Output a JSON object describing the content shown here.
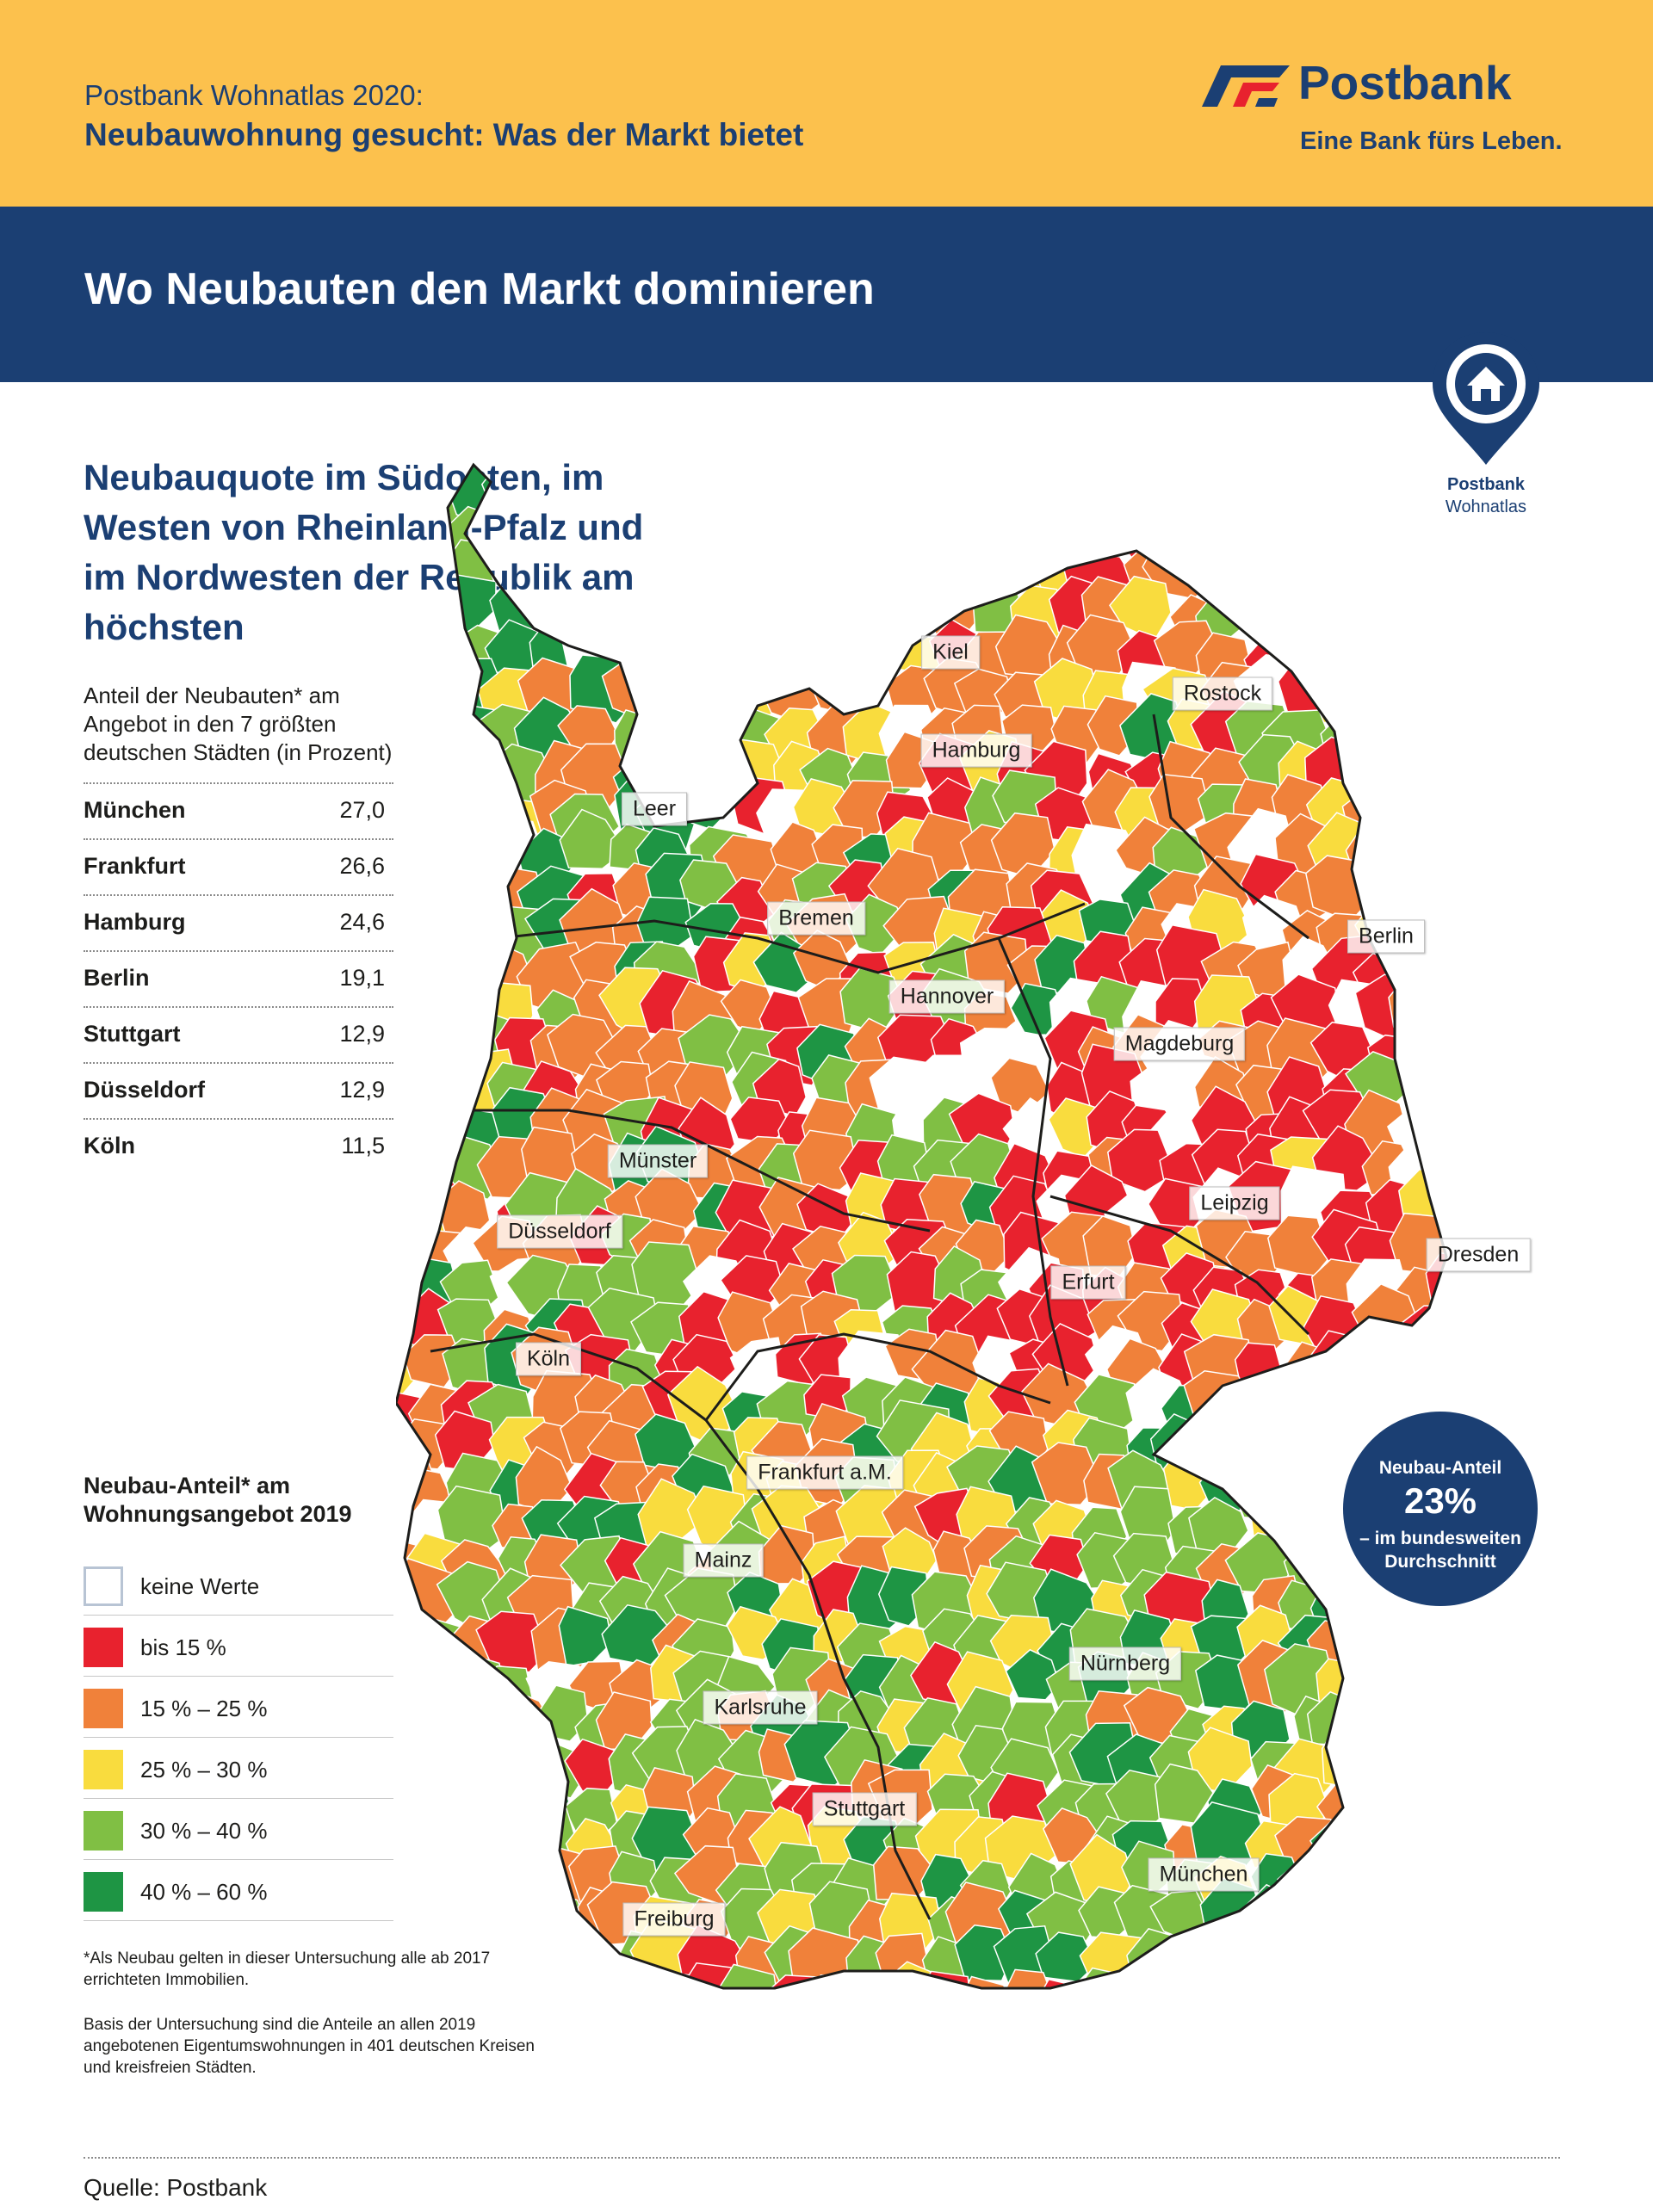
{
  "header": {
    "supertitle": "Postbank Wohnatlas 2020:",
    "subtitle": "Neubauwohnung gesucht: Was der Markt bietet"
  },
  "brand": {
    "name": "Postbank",
    "slogan": "Eine Bank fürs Leben."
  },
  "banner": {
    "title": "Wo Neubauten den Markt dominieren"
  },
  "wohnatlas_pin": {
    "line1": "Postbank",
    "line2": "Wohnatlas",
    "icon": "house-pin-icon"
  },
  "headline": "Neubauquote im Südosten, im Westen von Rheinland-Pfalz und im Nordwesten der Republik am höchsten",
  "table": {
    "intro": "Anteil der Neubauten* am Angebot in den 7 größten deutschen Städten (in Prozent)",
    "rows": [
      {
        "city": "München",
        "value": "27,0"
      },
      {
        "city": "Frankfurt",
        "value": "26,6"
      },
      {
        "city": "Hamburg",
        "value": "24,6"
      },
      {
        "city": "Berlin",
        "value": "19,1"
      },
      {
        "city": "Stuttgart",
        "value": "12,9"
      },
      {
        "city": "Düsseldorf",
        "value": "12,9"
      },
      {
        "city": "Köln",
        "value": "11,5"
      }
    ]
  },
  "legend": {
    "title": "Neubau-Anteil* am Wohnungsangebot 2019",
    "items": [
      {
        "label": "keine Werte",
        "color": "#ffffff"
      },
      {
        "label": "bis 15 %",
        "color": "#e8222e"
      },
      {
        "label": "15 % – 25 %",
        "color": "#f0813a"
      },
      {
        "label": "25 % – 30 %",
        "color": "#f9dc3e"
      },
      {
        "label": "30 % – 40 %",
        "color": "#80bf44"
      },
      {
        "label": "40 % – 60 %",
        "color": "#1e9544"
      }
    ]
  },
  "map": {
    "city_labels": [
      "Kiel",
      "Rostock",
      "Hamburg",
      "Leer",
      "Bremen",
      "Berlin",
      "Hannover",
      "Magdeburg",
      "Münster",
      "Leipzig",
      "Düsseldorf",
      "Dresden",
      "Erfurt",
      "Köln",
      "Frankfurt a.M.",
      "Mainz",
      "Nürnberg",
      "Karlsruhe",
      "Stuttgart",
      "München",
      "Freiburg"
    ]
  },
  "average": {
    "line1": "Neubau-Anteil",
    "value": "23%",
    "line3a": "– im bundesweiten",
    "line3b": "Durchschnitt"
  },
  "footnotes": {
    "definition": "*Als Neubau gelten in dieser Untersuchung alle ab 2017 errichteten Immobilien.",
    "basis": "Basis der Untersuchung sind die Anteile an allen 2019 angebotenen Eigentumswohnungen in 401 deutschen Kreisen und kreisfreien Städten."
  },
  "source": "Quelle: Postbank",
  "colors": {
    "brand_blue": "#1b3f73",
    "brand_yellow": "#fcc14d"
  }
}
